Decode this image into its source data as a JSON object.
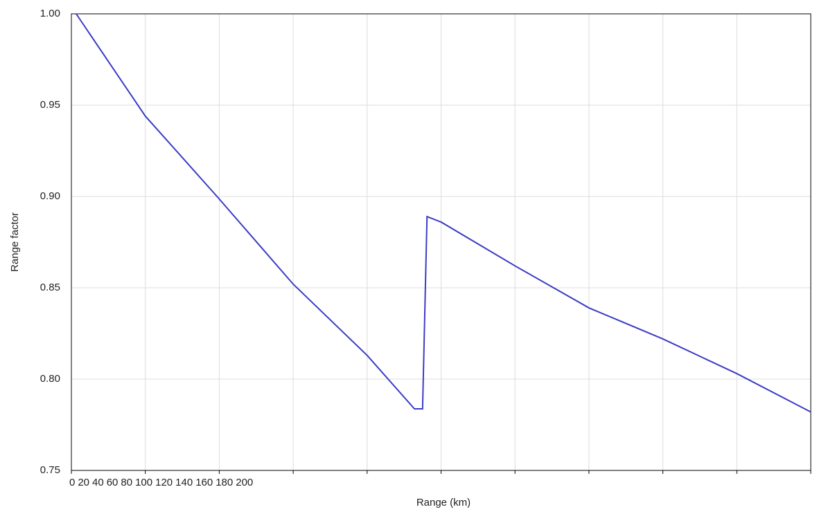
{
  "chart_data": {
    "type": "line",
    "x_label": "Range (km)",
    "y_label": "Range factor",
    "x": [
      1.3,
      20,
      39.4,
      60,
      80,
      92.8,
      95,
      96.2,
      100,
      120,
      140,
      160,
      180,
      200
    ],
    "series": [
      {
        "name": "Range factor",
        "color": "#3b3bc4",
        "values": [
          1.0,
          0.944,
          0.9,
          0.852,
          0.813,
          0.7837,
          0.7837,
          0.889,
          0.886,
          0.862,
          0.839,
          0.822,
          0.803,
          0.782
        ]
      }
    ],
    "xlim": [
      0,
      200
    ],
    "xticks": [
      0,
      20,
      40,
      60,
      80,
      100,
      120,
      140,
      160,
      180,
      200
    ],
    "ylim": [
      0.75,
      1.0
    ],
    "yticks": [
      0.75,
      {
        "value": 0.8,
        "label": "0.80"
      },
      0.85,
      {
        "value": 0.9,
        "label": "0.90"
      },
      0.95,
      {
        "value": 1.0,
        "label": "1.00"
      }
    ],
    "grid": true
  }
}
